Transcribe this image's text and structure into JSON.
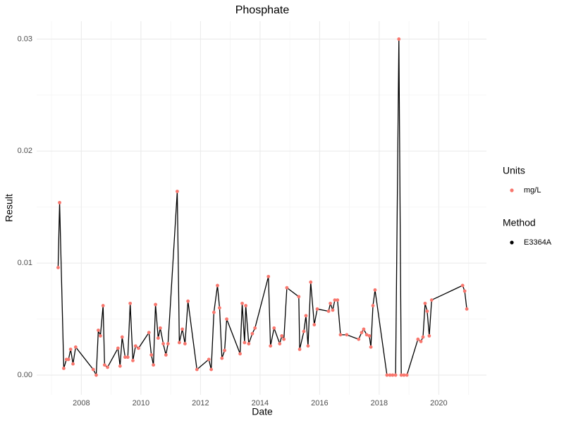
{
  "chart_data": {
    "type": "line",
    "title": "Phosphate",
    "x_label": "Date",
    "y_label": "Result",
    "x": [
      2007.22,
      2007.27,
      2007.41,
      2007.5,
      2007.57,
      2007.64,
      2007.72,
      2007.81,
      2008.4,
      2008.5,
      2008.57,
      2008.64,
      2008.73,
      2008.78,
      2008.88,
      2009.23,
      2009.3,
      2009.37,
      2009.47,
      2009.56,
      2009.64,
      2009.73,
      2009.82,
      2009.92,
      2010.27,
      2010.35,
      2010.42,
      2010.49,
      2010.58,
      2010.65,
      2010.75,
      2010.84,
      2010.91,
      2011.22,
      2011.29,
      2011.39,
      2011.48,
      2011.58,
      2011.88,
      2012.28,
      2012.36,
      2012.45,
      2012.57,
      2012.64,
      2012.72,
      2012.81,
      2012.88,
      2013.33,
      2013.4,
      2013.48,
      2013.52,
      2013.62,
      2013.74,
      2013.83,
      2014.28,
      2014.35,
      2014.47,
      2014.66,
      2014.73,
      2014.8,
      2014.9,
      2015.3,
      2015.33,
      2015.47,
      2015.54,
      2015.61,
      2015.7,
      2015.82,
      2015.92,
      2016.3,
      2016.36,
      2016.44,
      2016.51,
      2016.6,
      2016.7,
      2016.91,
      2017.31,
      2017.41,
      2017.48,
      2017.58,
      2017.67,
      2017.72,
      2017.79,
      2017.86,
      2018.26,
      2018.36,
      2018.45,
      2018.55,
      2018.66,
      2018.74,
      2018.83,
      2018.93,
      2019.3,
      2019.4,
      2019.47,
      2019.54,
      2019.61,
      2019.68,
      2019.76,
      2020.8,
      2020.87,
      2020.94
    ],
    "values": [
      0.0096,
      0.0154,
      0.0006,
      0.0014,
      0.0014,
      0.0023,
      0.001,
      0.0025,
      0.0005,
      0.0,
      0.004,
      0.0035,
      0.0062,
      0.0009,
      0.0007,
      0.0024,
      0.0008,
      0.0034,
      0.0016,
      0.0016,
      0.0064,
      0.0013,
      0.0026,
      0.0024,
      0.0038,
      0.0018,
      0.0009,
      0.0063,
      0.0033,
      0.0042,
      0.0028,
      0.0018,
      0.0028,
      0.0164,
      0.0029,
      0.0041,
      0.0028,
      0.0066,
      0.0005,
      0.0014,
      0.0005,
      0.0056,
      0.008,
      0.006,
      0.0015,
      0.0022,
      0.005,
      0.0019,
      0.0064,
      0.0029,
      0.0062,
      0.0028,
      0.0037,
      0.0042,
      0.0088,
      0.0026,
      0.0042,
      0.0028,
      0.0035,
      0.0032,
      0.0078,
      0.007,
      0.0023,
      0.0039,
      0.0053,
      0.0026,
      0.0083,
      0.0045,
      0.0059,
      0.0057,
      0.0064,
      0.0058,
      0.0067,
      0.0067,
      0.0036,
      0.0036,
      0.0032,
      0.0038,
      0.0041,
      0.0036,
      0.0035,
      0.0025,
      0.0062,
      0.0076,
      0.0,
      0.0,
      0.0,
      0.0,
      0.03,
      0.0,
      0.0,
      0.0,
      0.0032,
      0.003,
      0.0034,
      0.0064,
      0.0057,
      0.0035,
      0.0067,
      0.008,
      0.0075,
      0.0059
    ],
    "point_color": "#F8766D",
    "line_color": "#000000",
    "legends": [
      {
        "title": "Units",
        "label": "mg/L",
        "color": "#F8766D"
      },
      {
        "title": "Method",
        "label": "E3364A",
        "color": "#000000"
      }
    ],
    "xlim": [
      2006.5,
      2021.6
    ],
    "xticks": [
      2008,
      2010,
      2012,
      2014,
      2016,
      2018,
      2020
    ],
    "ylim": [
      -0.00176,
      0.0316
    ],
    "yticks": [
      {
        "value": 0,
        "label": "0.00"
      },
      {
        "value": 0.01,
        "label": "0.01"
      },
      {
        "value": 0.02,
        "label": "0.02"
      },
      {
        "value": 0.03,
        "label": "0.03"
      }
    ],
    "grid": true
  }
}
